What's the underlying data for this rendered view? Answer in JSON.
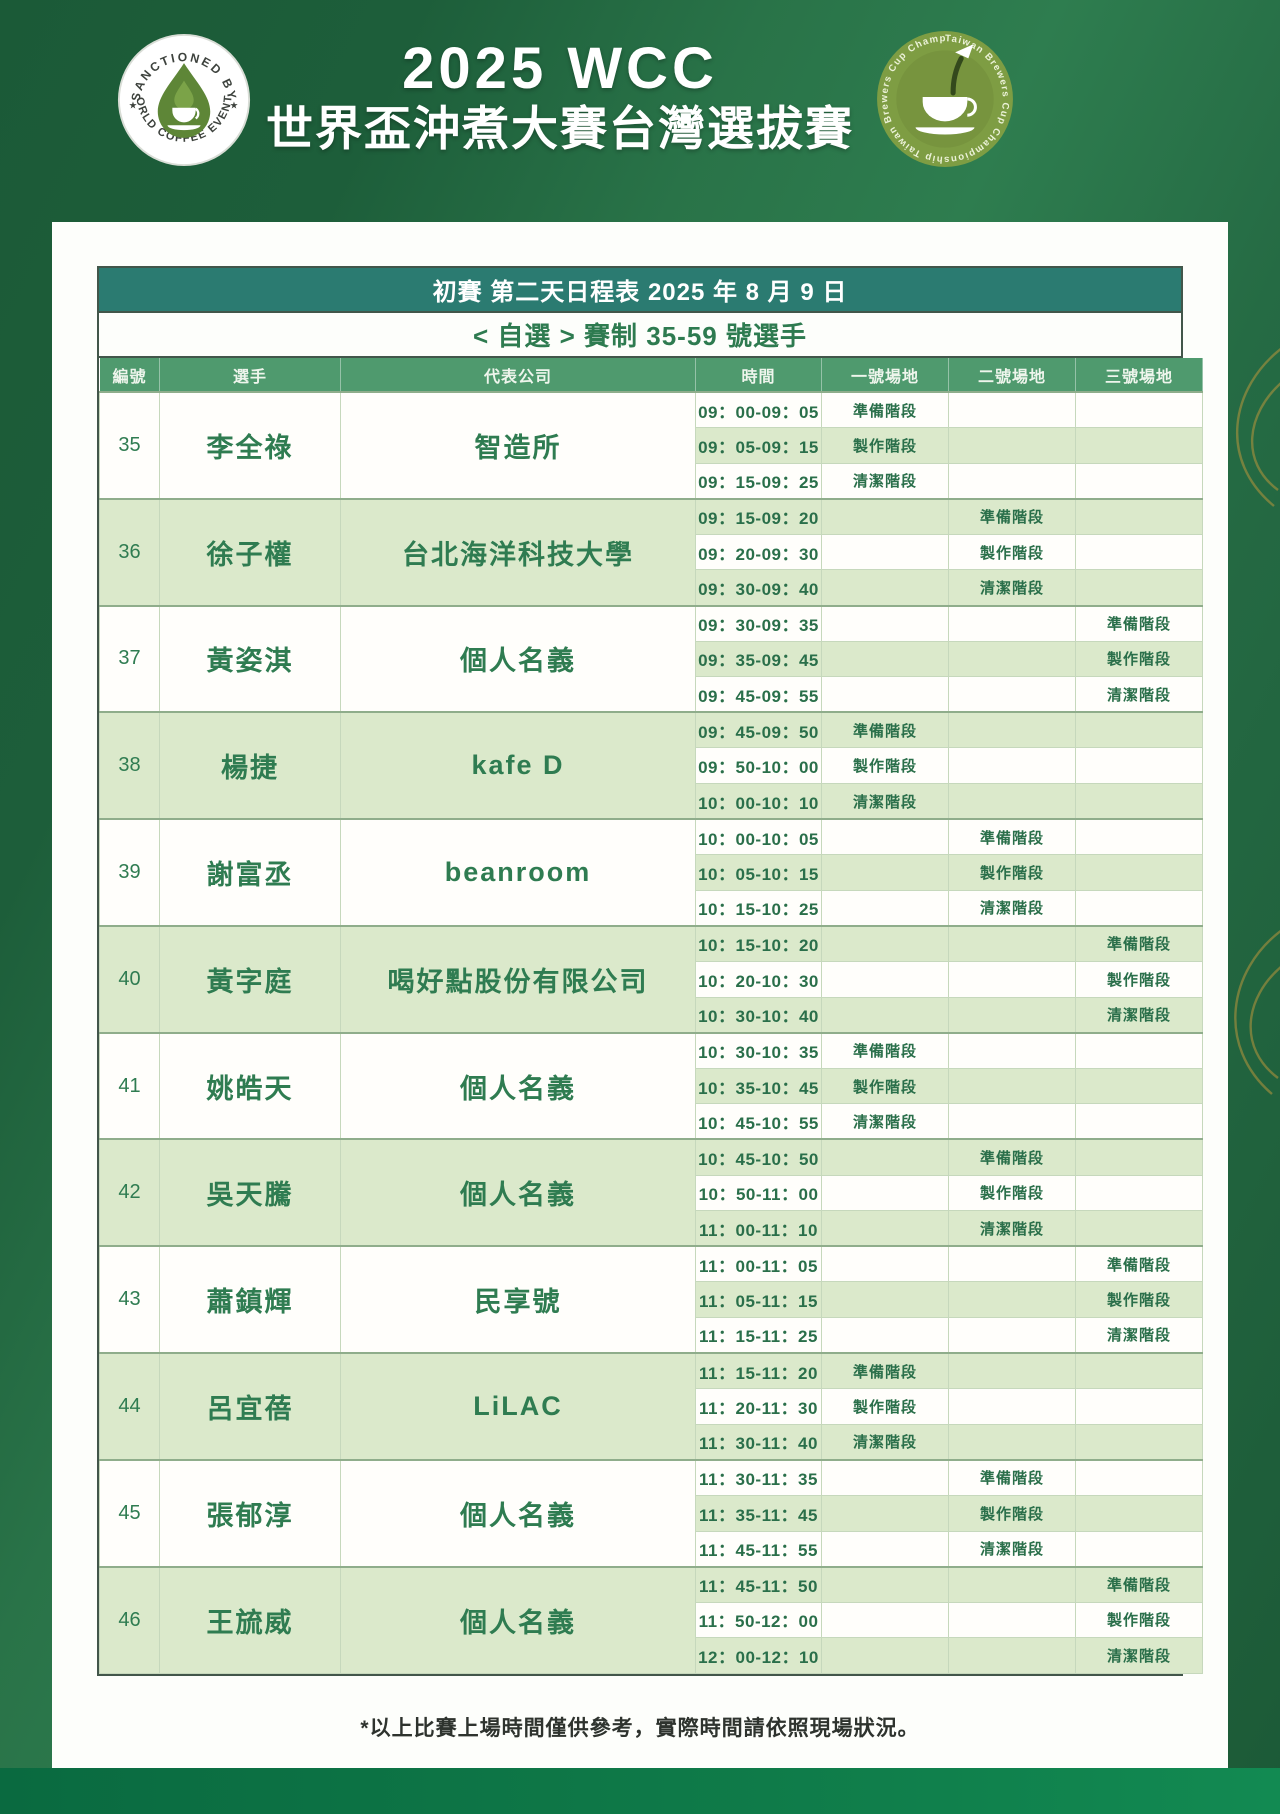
{
  "header": {
    "title_line1": "2025 WCC",
    "title_line2": "世界盃沖煮大賽台灣選拔賽"
  },
  "badge_left": {
    "top_text": "SANCTIONED BY",
    "bottom_text": "WORLD COFFEE EVENTS",
    "star": "★"
  },
  "badge_right": {
    "ring_text": "Taiwan Brewers Cup Championship Taiwan Brewers Cup Championship"
  },
  "table": {
    "title": "初賽 第二天日程表 2025 年 8 月 9 日",
    "subtitle": "< 自選 > 賽制 35-59 號選手",
    "columns": [
      "編號",
      "選手",
      "代表公司",
      "時間",
      "一號場地",
      "二號場地",
      "三號場地"
    ],
    "stages": [
      "準備階段",
      "製作階段",
      "清潔階段"
    ],
    "rows": [
      {
        "no": "35",
        "name": "李全祿",
        "company": "智造所",
        "venue": 1,
        "times": [
          "09：00-09：05",
          "09：05-09：15",
          "09：15-09：25"
        ]
      },
      {
        "no": "36",
        "name": "徐子權",
        "company": "台北海洋科技大學",
        "venue": 2,
        "times": [
          "09：15-09：20",
          "09：20-09：30",
          "09：30-09：40"
        ]
      },
      {
        "no": "37",
        "name": "黃姿淇",
        "company": "個人名義",
        "venue": 3,
        "times": [
          "09：30-09：35",
          "09：35-09：45",
          "09：45-09：55"
        ]
      },
      {
        "no": "38",
        "name": "楊捷",
        "company": "kafe D",
        "venue": 1,
        "times": [
          "09：45-09：50",
          "09：50-10：00",
          "10：00-10：10"
        ]
      },
      {
        "no": "39",
        "name": "謝富丞",
        "company": "beanroom",
        "venue": 2,
        "times": [
          "10：00-10：05",
          "10：05-10：15",
          "10：15-10：25"
        ]
      },
      {
        "no": "40",
        "name": "黃字庭",
        "company": "喝好點股份有限公司",
        "venue": 3,
        "times": [
          "10：15-10：20",
          "10：20-10：30",
          "10：30-10：40"
        ]
      },
      {
        "no": "41",
        "name": "姚皓天",
        "company": "個人名義",
        "venue": 1,
        "times": [
          "10：30-10：35",
          "10：35-10：45",
          "10：45-10：55"
        ]
      },
      {
        "no": "42",
        "name": "吳天騰",
        "company": "個人名義",
        "venue": 2,
        "times": [
          "10：45-10：50",
          "10：50-11：00",
          "11：00-11：10"
        ]
      },
      {
        "no": "43",
        "name": "蕭鎮輝",
        "company": "民享號",
        "venue": 3,
        "times": [
          "11：00-11：05",
          "11：05-11：15",
          "11：15-11：25"
        ]
      },
      {
        "no": "44",
        "name": "呂宜蓓",
        "company": "LiLAC",
        "venue": 1,
        "times": [
          "11：15-11：20",
          "11：20-11：30",
          "11：30-11：40"
        ]
      },
      {
        "no": "45",
        "name": "張郁淳",
        "company": "個人名義",
        "venue": 2,
        "times": [
          "11：30-11：35",
          "11：35-11：45",
          "11：45-11：55"
        ]
      },
      {
        "no": "46",
        "name": "王旈威",
        "company": "個人名義",
        "venue": 3,
        "times": [
          "11：45-11：50",
          "11：50-12：00",
          "12：00-12：10"
        ]
      }
    ]
  },
  "footnote": "*以上比賽上場時間僅供參考，實際時間請依照現場狀況。",
  "colors": {
    "background_green": "#2e7d4f",
    "teal_bar": "#2b7b71",
    "header_green": "#4f9a6e",
    "row_light_green": "#dbe9cb",
    "text_green": "#2f7c51",
    "gold_decor": "#ac923d",
    "bottom_strip": "#0f7b49"
  }
}
